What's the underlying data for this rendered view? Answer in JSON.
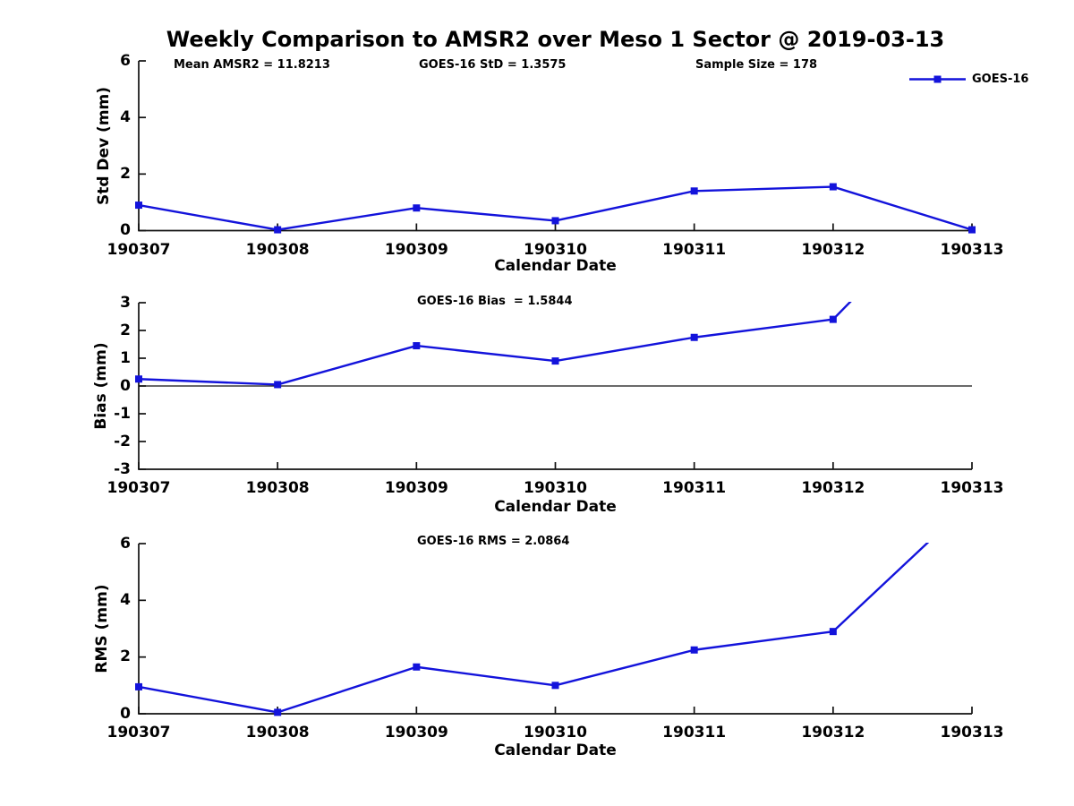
{
  "title": "Weekly Comparison to AMSR2 over Meso 1 Sector @ 2019-03-13",
  "legend": {
    "label": "GOES-16",
    "position": "top-right",
    "marker": "filled-square"
  },
  "colors": {
    "series": "#1313db",
    "axis": "#111111",
    "text": "#000000",
    "background": "#ffffff"
  },
  "annotations": {
    "mean_amsr2": "Mean AMSR2 = 11.8213",
    "goes16_std": "GOES-16 StD = 1.3575",
    "sample_size": "Sample Size = 178",
    "goes16_bias": "GOES-16 Bias  = 1.5844",
    "goes16_rms": "GOES-16 RMS = 2.0864"
  },
  "chart_data": [
    {
      "type": "line",
      "subplot": "std-dev",
      "ylabel": "Std Dev (mm)",
      "xlabel": "Calendar Date",
      "categories": [
        "190307",
        "190308",
        "190309",
        "190310",
        "190311",
        "190312",
        "190313"
      ],
      "series": [
        {
          "name": "GOES-16",
          "values": [
            0.9,
            0.03,
            0.8,
            0.35,
            1.4,
            1.55,
            0.03
          ]
        }
      ],
      "ylim": [
        0,
        6
      ],
      "yticks": [
        0,
        2,
        4,
        6
      ],
      "zero_line": false,
      "grid": false,
      "note": ""
    },
    {
      "type": "line",
      "subplot": "bias",
      "ylabel": "Bias (mm)",
      "xlabel": "Calendar Date",
      "categories": [
        "190307",
        "190308",
        "190309",
        "190310",
        "190311",
        "190312",
        "190313"
      ],
      "series": [
        {
          "name": "GOES-16",
          "values": [
            0.25,
            0.05,
            1.45,
            0.9,
            1.75,
            2.4,
            7.5
          ]
        }
      ],
      "ylim": [
        -3,
        3
      ],
      "yticks": [
        3,
        2,
        1,
        0,
        -1,
        -2,
        -3
      ],
      "zero_line": true,
      "grid": false,
      "note": "last point (190313) is above axis range; line is clipped at top of plot"
    },
    {
      "type": "line",
      "subplot": "rms",
      "ylabel": "RMS (mm)",
      "xlabel": "Calendar Date",
      "categories": [
        "190307",
        "190308",
        "190309",
        "190310",
        "190311",
        "190312",
        "190313"
      ],
      "series": [
        {
          "name": "GOES-16",
          "values": [
            0.95,
            0.05,
            1.65,
            1.0,
            2.25,
            2.9,
            7.5
          ]
        }
      ],
      "ylim": [
        0,
        6
      ],
      "yticks": [
        0,
        2,
        4,
        6
      ],
      "zero_line": false,
      "grid": false,
      "note": "last point (190313) is above axis range; line is clipped at top of plot"
    }
  ]
}
